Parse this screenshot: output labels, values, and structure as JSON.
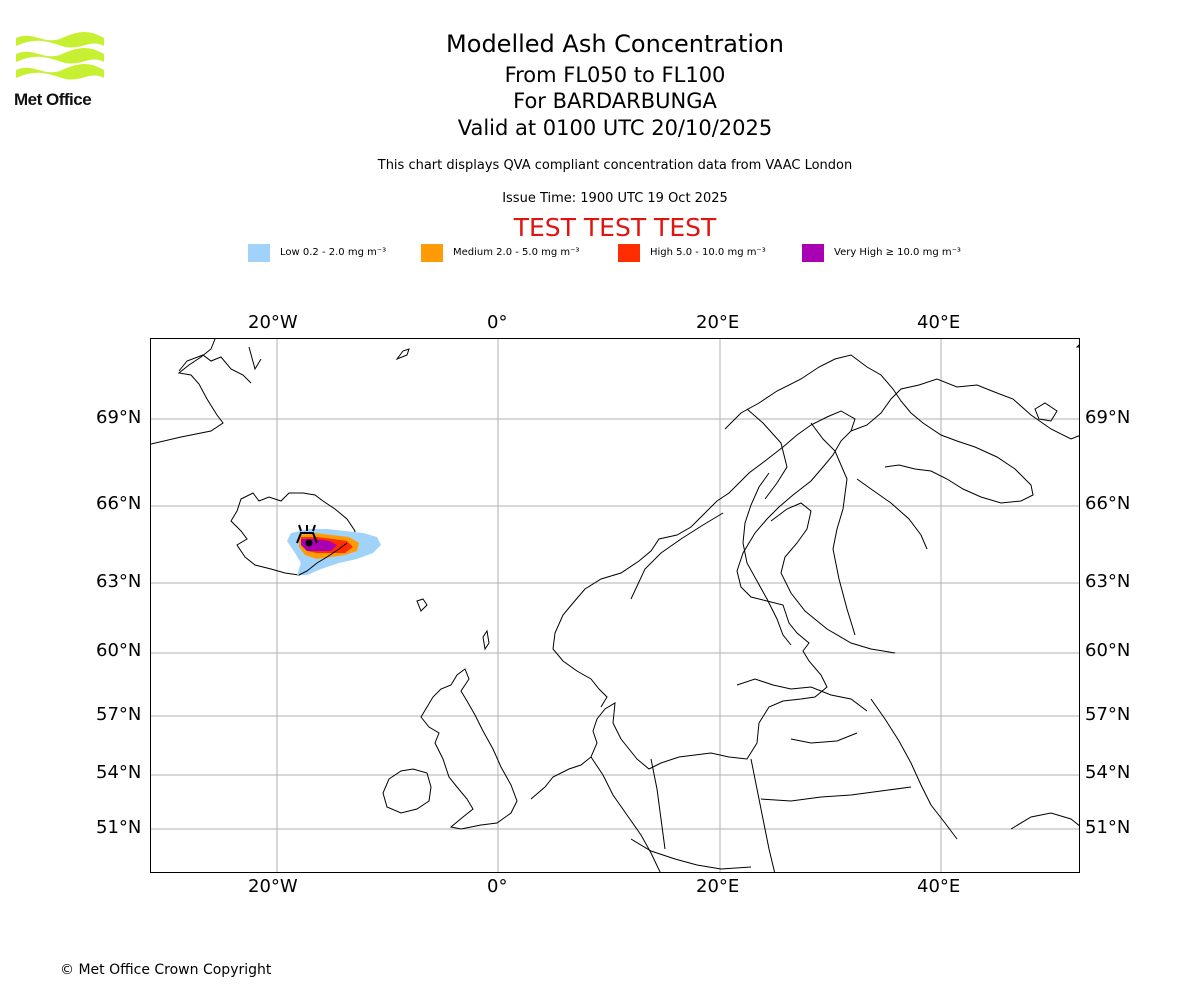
{
  "logo": {
    "text": "Met Office",
    "color": "#c8f032"
  },
  "titles": {
    "main": "Modelled Ash Concentration",
    "levels": "From FL050 to FL100",
    "volcano": "For BARDARBUNGA",
    "valid": "Valid at 0100 UTC 20/10/2025",
    "compliance": "This chart displays QVA compliant concentration data from VAAC London",
    "issue": "Issue Time: 1900 UTC 19 Oct 2025",
    "test": "TEST TEST TEST"
  },
  "legend": [
    {
      "label": "Low 0.2 - 2.0 mg m⁻³",
      "color": "#a0d2fa"
    },
    {
      "label": "Medium 2.0 - 5.0 mg m⁻³",
      "color": "#ff9b05"
    },
    {
      "label": "High 5.0 - 10.0 mg m⁻³",
      "color": "#ff2d00"
    },
    {
      "label": "Very High ≥ 10.0 mg m⁻³",
      "color": "#aa00b4"
    }
  ],
  "map": {
    "longitude_ticks": [
      "20°W",
      "0°",
      "20°E",
      "40°E"
    ],
    "latitude_ticks": [
      "69°N",
      "66°N",
      "63°N",
      "60°N",
      "57°N",
      "54°N",
      "51°N"
    ],
    "volcano_marker": "volcano-icon"
  },
  "footer": {
    "copyright": "© Met Office Crown Copyright"
  }
}
